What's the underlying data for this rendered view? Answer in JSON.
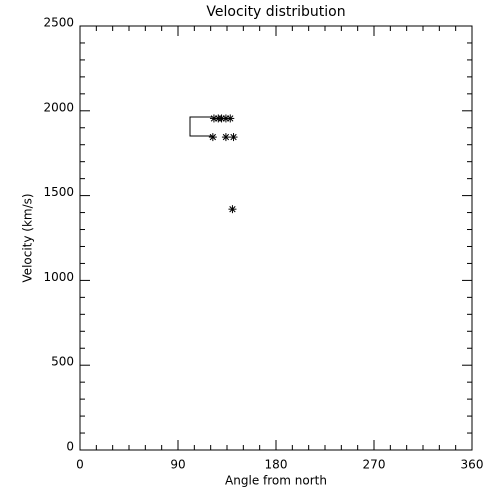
{
  "chart_data": {
    "type": "scatter",
    "title": "Velocity distribution",
    "x_label": "Angle from north",
    "y_label": "Velocity (km/s)",
    "x": [
      123,
      127,
      130,
      134,
      138,
      122,
      134,
      141,
      140
    ],
    "values": [
      1955,
      1955,
      1955,
      1955,
      1955,
      1845,
      1845,
      1845,
      1420
    ],
    "color": "#000000",
    "xlim": [
      0,
      360
    ],
    "xticks": [
      0,
      90,
      180,
      270,
      360
    ],
    "xminorticks": [
      15,
      30,
      45,
      60,
      75,
      105,
      120,
      135,
      150,
      165,
      195,
      210,
      225,
      240,
      255,
      285,
      300,
      315,
      330,
      345
    ],
    "ylim": [
      0,
      2500
    ],
    "yticks": [
      0,
      500,
      1000,
      1500,
      2000,
      2500
    ],
    "yminorticks": [
      100,
      200,
      300,
      400,
      600,
      700,
      800,
      900,
      1100,
      1200,
      1300,
      1400,
      1600,
      1700,
      1800,
      1900,
      2100,
      2200,
      2300,
      2400
    ]
  }
}
